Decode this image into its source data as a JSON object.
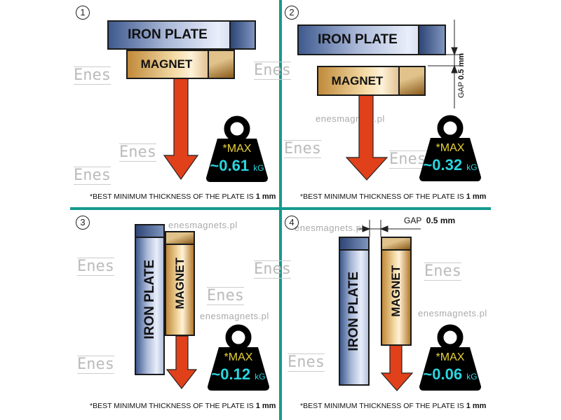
{
  "watermark": "enesmagnets.pl",
  "logo": "Enes",
  "colors": {
    "divider": "#159a8e",
    "max": "#e8d23a",
    "value": "#2ad6e0",
    "arrow": "#e0401a"
  },
  "footnote": {
    "text": "*BEST MINIMUM THICKNESS OF THE PLATE IS ",
    "bold": "1 mm"
  },
  "panels": [
    {
      "number": "1",
      "plate": "IRON PLATE",
      "magnet": "MAGNET",
      "max": "*MAX",
      "value": "~0.61",
      "unit": "kG"
    },
    {
      "number": "2",
      "plate": "IRON PLATE",
      "magnet": "MAGNET",
      "max": "*MAX",
      "value": "~0.32",
      "unit": "kG",
      "gap_label": "GAP",
      "gap_value": "0.5 mm"
    },
    {
      "number": "3",
      "plate": "IRON  PLATE",
      "magnet": "MAGNET",
      "max": "*MAX",
      "value": "~0.12",
      "unit": "kG"
    },
    {
      "number": "4",
      "plate": "IRON PLATE",
      "magnet": "MAGNET",
      "max": "*MAX",
      "value": "~0.06",
      "unit": "kG",
      "gap_label": "GAP",
      "gap_value": "0.5 mm"
    }
  ]
}
